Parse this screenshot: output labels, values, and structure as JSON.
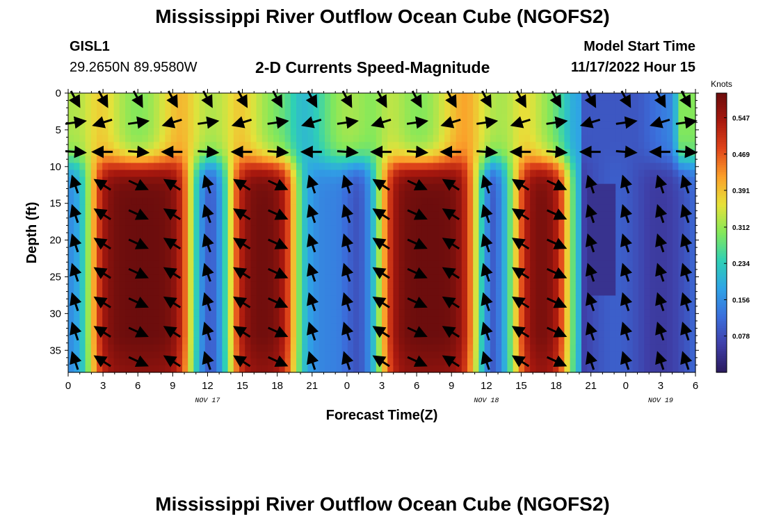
{
  "header": {
    "title": "Mississippi River Outflow Ocean Cube (NGOFS2)",
    "station": "GISL1",
    "coords": "29.2650N  89.9580W",
    "chart_title": "2-D Currents Speed-Magnitude",
    "model_start_label": "Model Start Time",
    "model_start_value": "11/17/2022 Hour 15"
  },
  "footer": {
    "title": "Mississippi River Outflow Ocean Cube (NGOFS2)"
  },
  "chart_data": {
    "type": "heatmap",
    "xlabel": "Forecast Time(Z)",
    "ylabel": "Depth (ft)",
    "x_tick_labels": [
      "0",
      "3",
      "6",
      "9",
      "12",
      "15",
      "18",
      "21",
      "0",
      "3",
      "6",
      "9",
      "12",
      "15",
      "18",
      "21",
      "0",
      "3",
      "6"
    ],
    "x_range_hours": [
      0,
      54
    ],
    "date_labels": [
      {
        "text": "NOV 17",
        "hour": 12
      },
      {
        "text": "NOV 18",
        "hour": 36
      },
      {
        "text": "NOV 19",
        "hour": 51
      }
    ],
    "y_ticks": [
      0,
      5,
      10,
      15,
      20,
      25,
      30,
      35
    ],
    "ylim": [
      0,
      38
    ],
    "y_inverted": true,
    "colorbar": {
      "unit": "Knots",
      "ticks": [
        "0.547",
        "0.469",
        "0.391",
        "0.312",
        "0.234",
        "0.156",
        "0.078"
      ],
      "tick_values": [
        0.547,
        0.469,
        0.391,
        0.312,
        0.234,
        0.156,
        0.078
      ],
      "range": [
        0.0,
        0.6
      ],
      "colors": [
        "#2a1a5e",
        "#3f3fa8",
        "#3b6fdc",
        "#2fa3e6",
        "#2fd0b5",
        "#84e85a",
        "#e6e23a",
        "#fba02a",
        "#e0451a",
        "#a8180e",
        "#6b0d0d"
      ]
    },
    "speed_field": {
      "description_hours": "approximate depth-averaged speed pattern (knots) by forecast hour; deep layers (>=10 ft)",
      "high_speed_bands_hours": [
        [
          2,
          10.5
        ],
        [
          14,
          19.5
        ],
        [
          27,
          35
        ],
        [
          38.5,
          43
        ]
      ],
      "low_speed_bands_hours": [
        [
          11,
          13.5
        ],
        [
          24,
          26
        ],
        [
          36,
          37
        ],
        [
          44,
          54
        ]
      ],
      "peak_speed": 0.6,
      "min_speed": 0.03
    },
    "vector_depths_ft": [
      0,
      4,
      8,
      12.5,
      16.5,
      20.5,
      24.5,
      28.5,
      32.5,
      36.5
    ]
  }
}
